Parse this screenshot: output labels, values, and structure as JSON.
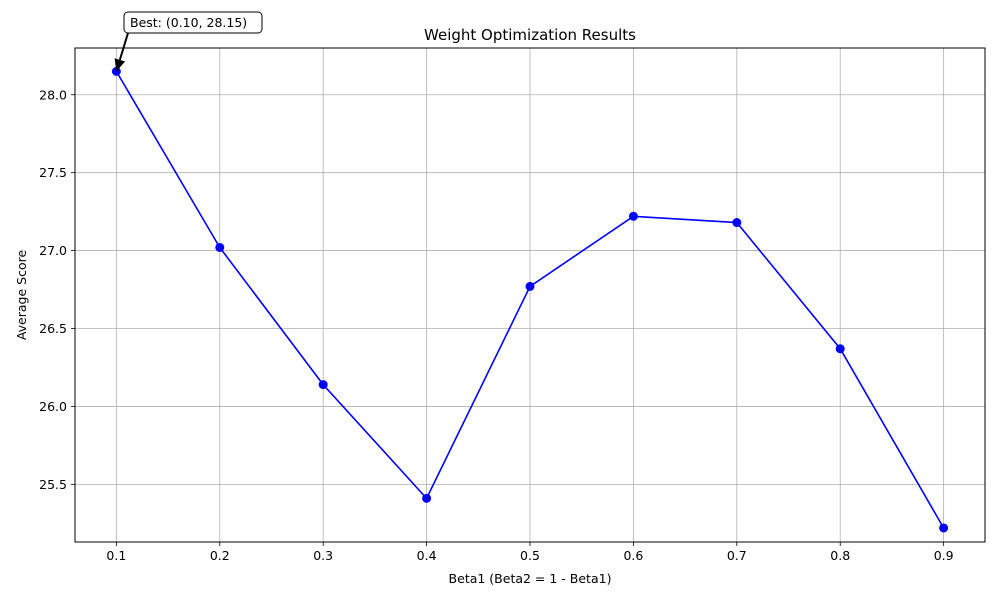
{
  "chart_data": {
    "type": "line",
    "title": "Weight Optimization Results",
    "xlabel": "Beta1 (Beta2 = 1 - Beta1)",
    "ylabel": "Average Score",
    "x": [
      0.1,
      0.2,
      0.3,
      0.4,
      0.5,
      0.6,
      0.7,
      0.8,
      0.9
    ],
    "series": [
      {
        "values": [
          28.15,
          27.02,
          26.14,
          25.41,
          26.77,
          27.22,
          27.18,
          26.37,
          25.22
        ],
        "color": "#0000ff",
        "marker": "circle"
      }
    ],
    "xlim": [
      0.06,
      0.94
    ],
    "ylim": [
      25.13,
      28.3
    ],
    "xticks": [
      "0.1",
      "0.2",
      "0.3",
      "0.4",
      "0.5",
      "0.6",
      "0.7",
      "0.8",
      "0.9"
    ],
    "yticks": [
      "25.5",
      "26.0",
      "26.5",
      "27.0",
      "27.5",
      "28.0"
    ],
    "grid": true,
    "annotation": {
      "text": "Best: (0.10, 28.15)",
      "x": 0.1,
      "y": 28.15
    }
  }
}
